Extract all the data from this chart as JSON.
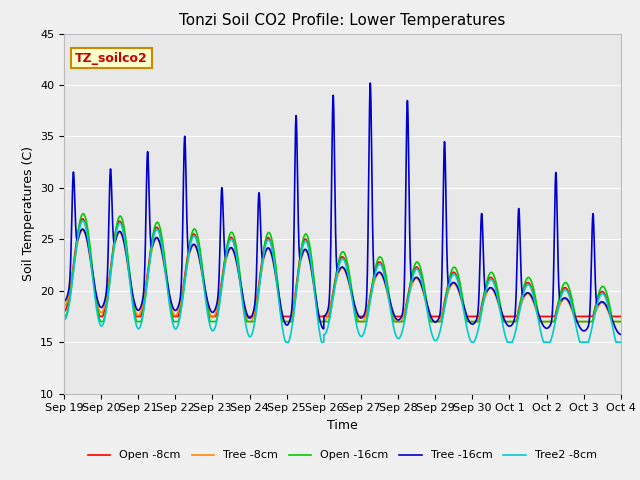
{
  "title": "Tonzi Soil CO2 Profile: Lower Temperatures",
  "xlabel": "Time",
  "ylabel": "Soil Temperatures (C)",
  "ylim": [
    10,
    45
  ],
  "tick_labels": [
    "Sep 19",
    "Sep 20",
    "Sep 21",
    "Sep 22",
    "Sep 23",
    "Sep 24",
    "Sep 25",
    "Sep 26",
    "Sep 27",
    "Sep 28",
    "Sep 29",
    "Sep 30",
    "Oct 1",
    "Oct 2",
    "Oct 3",
    "Oct 4"
  ],
  "annotation_text": "TZ_soilco2",
  "annotation_color": "#cc0000",
  "annotation_bg": "#ffffcc",
  "annotation_border": "#cc8800",
  "fig_bg": "#f0f0f0",
  "plot_bg": "#e8e8e8",
  "legend_entries": [
    "Open -8cm",
    "Tree -8cm",
    "Open -16cm",
    "Tree -16cm",
    "Tree2 -8cm"
  ],
  "line_colors": [
    "#ff0000",
    "#ff8800",
    "#00cc00",
    "#0000cc",
    "#00cccc"
  ],
  "grid_color": "#ffffff",
  "title_fontsize": 11,
  "label_fontsize": 9,
  "tick_fontsize": 8
}
